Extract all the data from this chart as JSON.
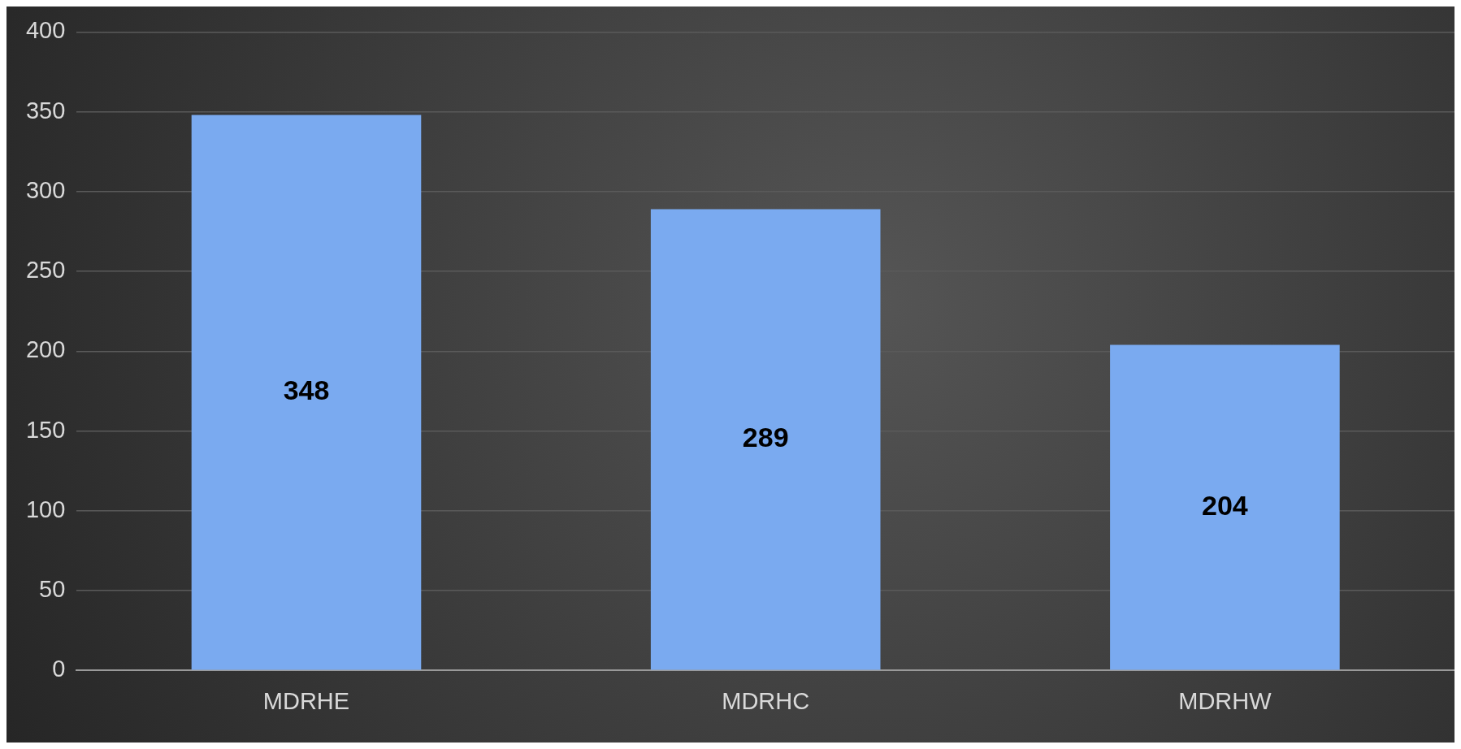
{
  "chart_data": {
    "type": "bar",
    "categories": [
      "MDRHE",
      "MDRHC",
      "MDRHW"
    ],
    "values": [
      348,
      289,
      204
    ],
    "color": "#7aaaf0",
    "ylim": [
      0,
      400
    ],
    "yticks": [
      0,
      50,
      100,
      150,
      200,
      250,
      300,
      350,
      400
    ],
    "grid": "y",
    "data_labels": true,
    "legend": false
  }
}
